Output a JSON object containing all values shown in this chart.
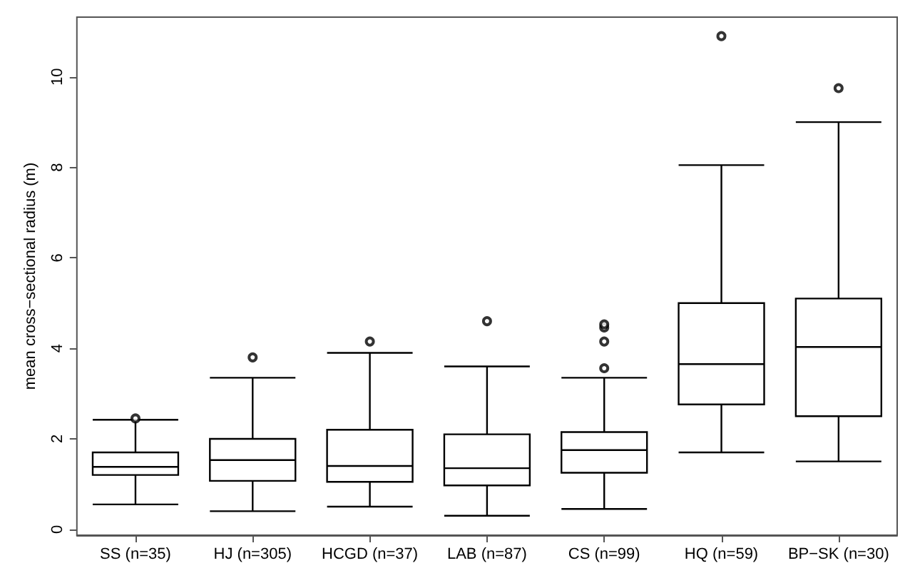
{
  "chart_data": {
    "type": "box",
    "ylabel": "mean cross−sectional radius (m)",
    "categories": [
      "SS (n=35)",
      "HJ (n=305)",
      "HCGD (n=37)",
      "LAB (n=87)",
      "CS (n=99)",
      "HQ (n=59)",
      "BP−SK (n=30)"
    ],
    "boxes": [
      {
        "low": 0.55,
        "q1": 1.2,
        "median": 1.38,
        "q3": 1.7,
        "high": 2.42,
        "outliers": [
          2.45
        ]
      },
      {
        "low": 0.4,
        "q1": 1.07,
        "median": 1.53,
        "q3": 2.0,
        "high": 3.35,
        "outliers": [
          3.8
        ]
      },
      {
        "low": 0.5,
        "q1": 1.05,
        "median": 1.4,
        "q3": 2.2,
        "high": 3.9,
        "outliers": [
          4.15
        ]
      },
      {
        "low": 0.3,
        "q1": 0.97,
        "median": 1.35,
        "q3": 2.1,
        "high": 3.6,
        "outliers": [
          4.6
        ]
      },
      {
        "low": 0.45,
        "q1": 1.25,
        "median": 1.75,
        "q3": 2.15,
        "high": 3.35,
        "outliers": [
          3.56,
          4.15,
          4.46,
          4.53
        ]
      },
      {
        "low": 1.7,
        "q1": 2.76,
        "median": 3.65,
        "q3": 5.0,
        "high": 8.05,
        "outliers": [
          10.9
        ]
      },
      {
        "low": 1.5,
        "q1": 2.5,
        "median": 4.03,
        "q3": 5.1,
        "high": 9.0,
        "outliers": [
          9.75
        ]
      }
    ],
    "color": "#000000",
    "ylim": [
      -0.13,
      11.32
    ],
    "yticks": [
      0,
      2,
      4,
      6,
      8,
      10
    ],
    "grid": false
  }
}
